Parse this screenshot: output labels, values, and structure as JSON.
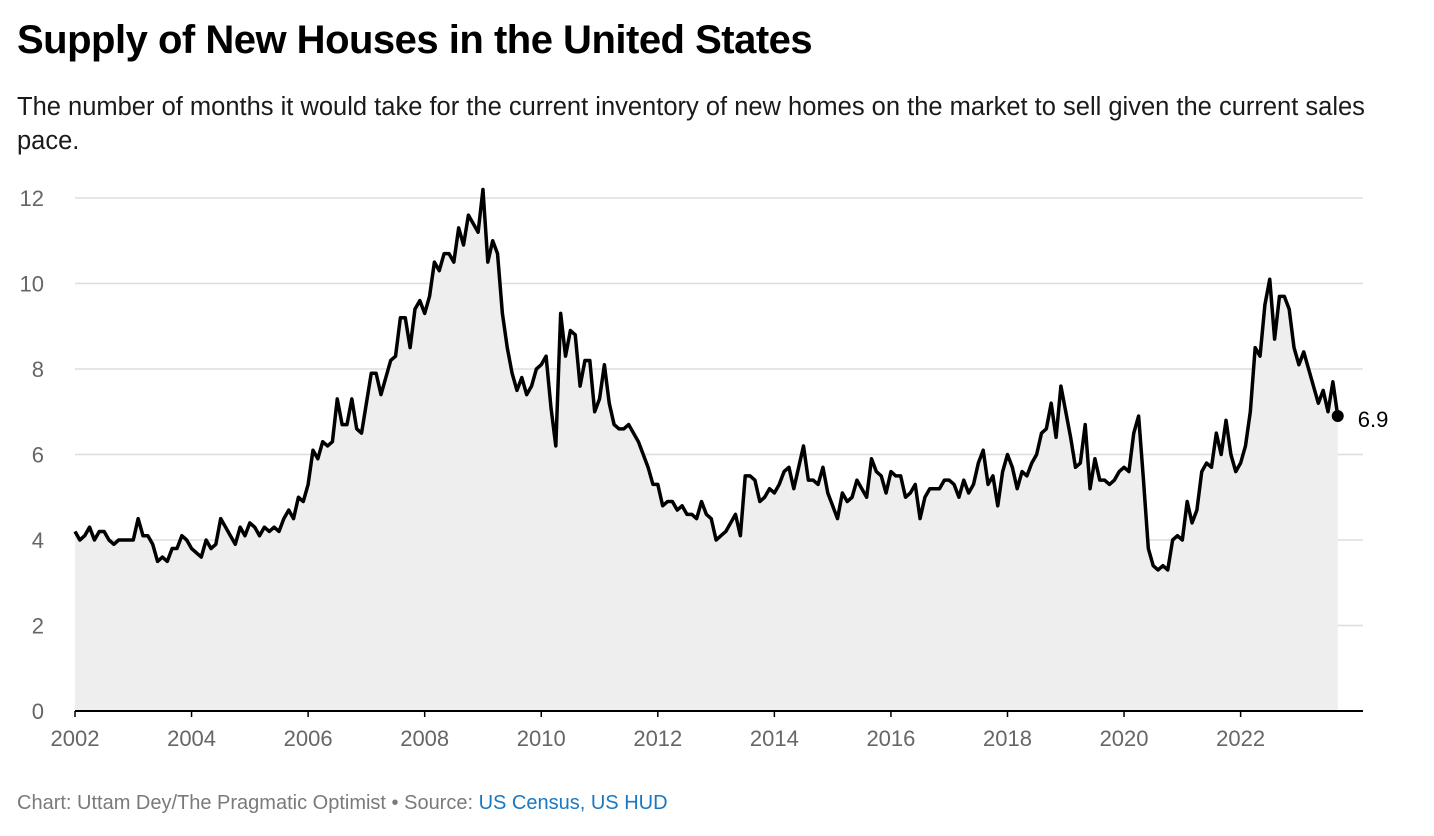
{
  "header": {
    "title": "Supply of New Houses in the United States",
    "subtitle": "The number of months it would take for the current inventory of new homes on the market to sell given the current sales pace."
  },
  "footer": {
    "credit": "Chart: Uttam Dey/The Pragmatic Optimist",
    "separator": " • Source: ",
    "source": "US Census, US HUD"
  },
  "colors": {
    "line": "#000000",
    "area_fill": "#eeeeee",
    "grid": "#dddddd",
    "axis": "#000000",
    "tick_text": "#666666",
    "source_link": "#1a78c2"
  },
  "chart_data": {
    "type": "area",
    "title": "Supply of New Houses in the United States",
    "subtitle": "The number of months it would take for the current inventory of new homes on the market to sell given the current sales pace.",
    "xlabel": "",
    "ylabel": "",
    "xlim": [
      2002,
      2024.1
    ],
    "ylim": [
      0,
      12
    ],
    "x_ticks": [
      2002,
      2004,
      2006,
      2008,
      2010,
      2012,
      2014,
      2016,
      2018,
      2020,
      2022
    ],
    "y_ticks": [
      0,
      2,
      4,
      6,
      8,
      10,
      12
    ],
    "grid": true,
    "x_start": "2002-01",
    "frequency": "monthly",
    "end_label": "6.9",
    "series": [
      {
        "values": [
          4.2,
          4.0,
          4.1,
          4.3,
          4.0,
          4.2,
          4.2,
          4.0,
          3.9,
          4.0,
          4.0,
          4.0,
          4.0,
          4.5,
          4.1,
          4.1,
          3.9,
          3.5,
          3.6,
          3.5,
          3.8,
          3.8,
          4.1,
          4.0,
          3.8,
          3.7,
          3.6,
          4.0,
          3.8,
          3.9,
          4.5,
          4.3,
          4.1,
          3.9,
          4.3,
          4.1,
          4.4,
          4.3,
          4.1,
          4.3,
          4.2,
          4.3,
          4.2,
          4.5,
          4.7,
          4.5,
          5.0,
          4.9,
          5.3,
          6.1,
          5.9,
          6.3,
          6.2,
          6.3,
          7.3,
          6.7,
          6.7,
          7.3,
          6.6,
          6.5,
          7.2,
          7.9,
          7.9,
          7.4,
          7.8,
          8.2,
          8.3,
          9.2,
          9.2,
          8.5,
          9.4,
          9.6,
          9.3,
          9.7,
          10.5,
          10.3,
          10.7,
          10.7,
          10.5,
          11.3,
          10.9,
          11.6,
          11.4,
          11.2,
          12.2,
          10.5,
          11.0,
          10.7,
          9.3,
          8.5,
          7.9,
          7.5,
          7.8,
          7.4,
          7.6,
          8.0,
          8.1,
          8.3,
          7.1,
          6.2,
          9.3,
          8.3,
          8.9,
          8.8,
          7.6,
          8.2,
          8.2,
          7.0,
          7.3,
          8.1,
          7.2,
          6.7,
          6.6,
          6.6,
          6.7,
          6.5,
          6.3,
          6.0,
          5.7,
          5.3,
          5.3,
          4.8,
          4.9,
          4.9,
          4.7,
          4.8,
          4.6,
          4.6,
          4.5,
          4.9,
          4.6,
          4.5,
          4.0,
          4.1,
          4.2,
          4.4,
          4.6,
          4.1,
          5.5,
          5.5,
          5.4,
          4.9,
          5.0,
          5.2,
          5.1,
          5.3,
          5.6,
          5.7,
          5.2,
          5.7,
          6.2,
          5.4,
          5.4,
          5.3,
          5.7,
          5.1,
          4.8,
          4.5,
          5.1,
          4.9,
          5.0,
          5.4,
          5.2,
          5.0,
          5.9,
          5.6,
          5.5,
          5.1,
          5.6,
          5.5,
          5.5,
          5.0,
          5.1,
          5.3,
          4.5,
          5.0,
          5.2,
          5.2,
          5.2,
          5.4,
          5.4,
          5.3,
          5.0,
          5.4,
          5.1,
          5.3,
          5.8,
          6.1,
          5.3,
          5.5,
          4.8,
          5.6,
          6.0,
          5.7,
          5.2,
          5.6,
          5.5,
          5.8,
          6.0,
          6.5,
          6.6,
          7.2,
          6.4,
          7.6,
          7.0,
          6.4,
          5.7,
          5.8,
          6.7,
          5.2,
          5.9,
          5.4,
          5.4,
          5.3,
          5.4,
          5.6,
          5.7,
          5.6,
          6.5,
          6.9,
          5.4,
          3.8,
          3.4,
          3.3,
          3.4,
          3.3,
          4.0,
          4.1,
          4.0,
          4.9,
          4.4,
          4.7,
          5.6,
          5.8,
          5.7,
          6.5,
          6.0,
          6.8,
          6.0,
          5.6,
          5.8,
          6.2,
          7.0,
          8.5,
          8.3,
          9.5,
          10.1,
          8.7,
          9.7,
          9.7,
          9.4,
          8.5,
          8.1,
          8.4,
          8.0,
          7.6,
          7.2,
          7.5,
          7.0,
          7.7,
          6.9
        ]
      }
    ]
  }
}
